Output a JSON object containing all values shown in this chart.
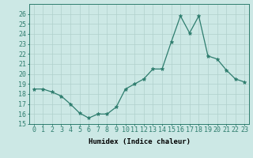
{
  "x": [
    0,
    1,
    2,
    3,
    4,
    5,
    6,
    7,
    8,
    9,
    10,
    11,
    12,
    13,
    14,
    15,
    16,
    17,
    18,
    19,
    20,
    21,
    22,
    23
  ],
  "y": [
    18.5,
    18.5,
    18.2,
    17.8,
    17.0,
    16.1,
    15.6,
    16.0,
    16.0,
    16.7,
    18.5,
    19.0,
    19.5,
    20.5,
    20.5,
    23.2,
    25.8,
    24.1,
    25.8,
    21.8,
    21.5,
    20.4,
    19.5,
    19.2
  ],
  "xlabel": "Humidex (Indice chaleur)",
  "ylim": [
    15,
    27
  ],
  "yticks": [
    15,
    16,
    17,
    18,
    19,
    20,
    21,
    22,
    23,
    24,
    25,
    26
  ],
  "xticks": [
    0,
    1,
    2,
    3,
    4,
    5,
    6,
    7,
    8,
    9,
    10,
    11,
    12,
    13,
    14,
    15,
    16,
    17,
    18,
    19,
    20,
    21,
    22,
    23
  ],
  "line_color": "#2e7d6e",
  "marker_color": "#2e7d6e",
  "bg_color": "#cce8e5",
  "grid_color": "#b0d0cc",
  "axis_fontsize": 6.5,
  "tick_fontsize": 6.0
}
